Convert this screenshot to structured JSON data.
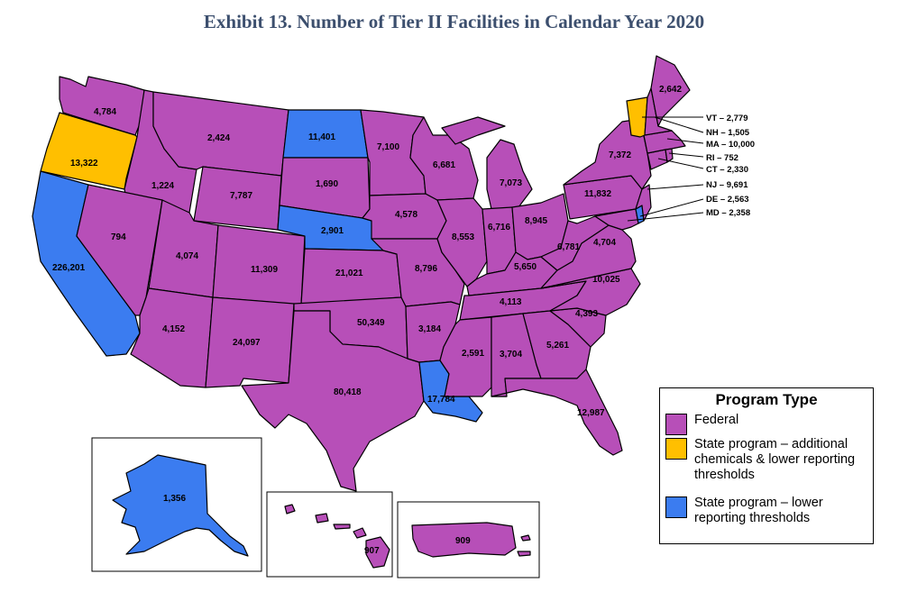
{
  "title": "Exhibit 13. Number of Tier II Facilities in Calendar Year 2020",
  "colors": {
    "federal": "#b74fb8",
    "state_additional": "#ffbf00",
    "state_lower": "#3b7cf0"
  },
  "legend": {
    "title": "Program Type",
    "items": [
      {
        "label": "Federal",
        "color": "#b74fb8"
      },
      {
        "label": "State program – additional chemicals & lower reporting thresholds",
        "color": "#ffbf00"
      },
      {
        "label": "State program – lower reporting thresholds",
        "color": "#3b7cf0"
      }
    ]
  },
  "states": {
    "WA": "4,784",
    "OR": "13,322",
    "CA": "226,201",
    "ID": "1,224",
    "NV": "794",
    "MT": "2,424",
    "WY": "7,787",
    "UT": "4,074",
    "AZ": "4,152",
    "CO": "11,309",
    "NM": "24,097",
    "ND": "11,401",
    "SD": "1,690",
    "NE": "2,901",
    "KS": "21,021",
    "OK": "50,349",
    "TX": "80,418",
    "MN": "7,100",
    "IA": "4,578",
    "MO": "8,796",
    "AR": "3,184",
    "LA": "17,784",
    "WI": "6,681",
    "IL": "8,553",
    "MI": "7,073",
    "IN": "6,716",
    "OH": "8,945",
    "KY": "5,650",
    "TN": "4,113",
    "MS": "2,591",
    "AL": "3,704",
    "GA": "5,261",
    "FL": "12,987",
    "SC": "4,393",
    "NC": "10,025",
    "VA": "4,704",
    "WV": "6,781",
    "PA": "11,832",
    "NY": "7,372",
    "ME": "2,642",
    "AK": "1,356",
    "HI": "907",
    "PR": "909"
  },
  "callouts": [
    "VT – 2,779",
    "NH – 1,505",
    "MA – 10,000",
    "RI – 752",
    "CT – 2,330",
    "NJ – 9,691",
    "DE – 2,563",
    "MD – 2,358"
  ]
}
